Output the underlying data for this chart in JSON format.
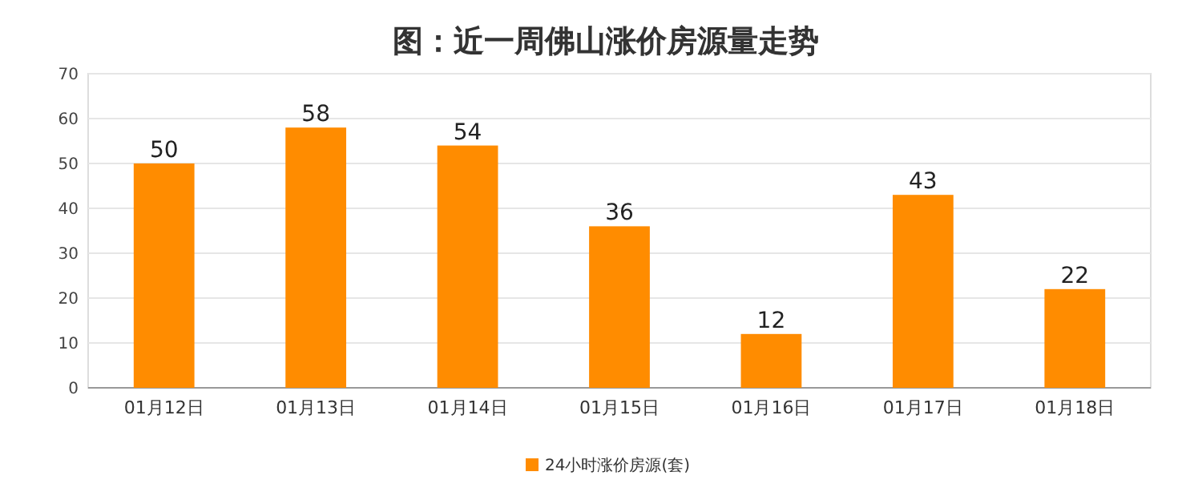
{
  "chart_data": {
    "type": "bar",
    "title": "图：近一周佛山涨价房源量走势",
    "categories": [
      "01月12日",
      "01月13日",
      "01月14日",
      "01月15日",
      "01月16日",
      "01月17日",
      "01月18日"
    ],
    "series": [
      {
        "name": "24小时涨价房源(套)",
        "color": "#ff8c00",
        "values": [
          50,
          58,
          54,
          36,
          12,
          43,
          22
        ]
      }
    ],
    "ylim": [
      0,
      70
    ],
    "yticks": [
      0,
      10,
      20,
      30,
      40,
      50,
      60,
      70
    ],
    "grid": "y",
    "legend": "bottom",
    "data_labels": true
  }
}
